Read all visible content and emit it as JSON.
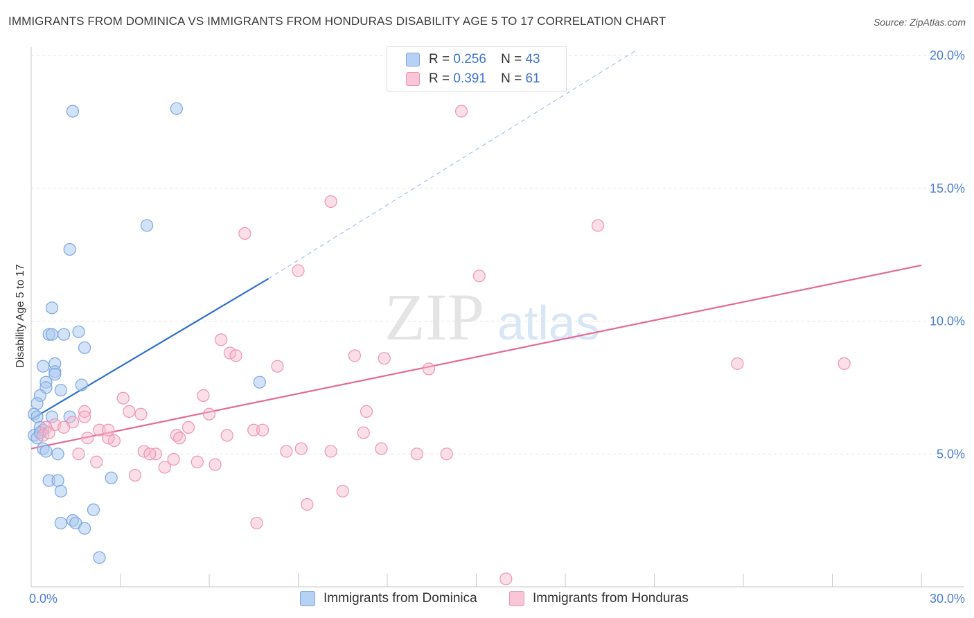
{
  "title": "IMMIGRANTS FROM DOMINICA VS IMMIGRANTS FROM HONDURAS DISABILITY AGE 5 TO 17 CORRELATION CHART",
  "source": "Source: ZipAtlas.com",
  "watermark": {
    "zip": "ZIP",
    "atlas": "atlas"
  },
  "legend": {
    "r_label": "R =",
    "n_label": "N =",
    "series": [
      {
        "r": "0.256",
        "n": "43"
      },
      {
        "r": "0.391",
        "n": "61"
      }
    ]
  },
  "bottom_legend": [
    "Immigrants from Dominica",
    "Immigrants from Honduras"
  ],
  "colors": {
    "dominica_fill": "#a8c8f0",
    "dominica_stroke": "#7aa6e0",
    "dominica_line": "#2f6fcf",
    "honduras_fill": "#f6b8cc",
    "honduras_stroke": "#ec94b1",
    "honduras_line": "#e36a96",
    "tick_text": "#4a7fd0"
  },
  "chart_data": {
    "type": "scatter",
    "title": "IMMIGRANTS FROM DOMINICA VS IMMIGRANTS FROM HONDURAS DISABILITY AGE 5 TO 17 CORRELATION CHART",
    "xlabel": "",
    "ylabel": "Disability Age 5 to 17",
    "xlim": [
      0,
      30
    ],
    "ylim": [
      0,
      20
    ],
    "x_tick_labels": [
      "0.0%",
      "30.0%"
    ],
    "y_ticks": [
      5,
      10,
      15,
      20
    ],
    "y_tick_labels": [
      "5.0%",
      "10.0%",
      "15.0%",
      "20.0%"
    ],
    "grid": true,
    "series": [
      {
        "name": "Immigrants from Dominica",
        "r": 0.256,
        "n": 43,
        "trend": {
          "x": [
            0.0,
            8.0
          ],
          "y": [
            6.3,
            11.6
          ],
          "extended_x": [
            8.0,
            20.4
          ],
          "extended_y": [
            11.6,
            20.2
          ]
        },
        "points": [
          [
            1.4,
            17.9
          ],
          [
            4.9,
            18.0
          ],
          [
            3.9,
            13.6
          ],
          [
            1.3,
            12.7
          ],
          [
            0.7,
            10.5
          ],
          [
            1.6,
            9.6
          ],
          [
            0.6,
            9.5
          ],
          [
            0.7,
            9.5
          ],
          [
            1.1,
            9.5
          ],
          [
            1.8,
            9.0
          ],
          [
            0.8,
            8.4
          ],
          [
            0.4,
            8.3
          ],
          [
            0.8,
            8.1
          ],
          [
            0.8,
            8.0
          ],
          [
            0.5,
            7.7
          ],
          [
            1.7,
            7.6
          ],
          [
            7.7,
            7.7
          ],
          [
            0.5,
            7.5
          ],
          [
            1.0,
            7.4
          ],
          [
            0.3,
            7.2
          ],
          [
            0.2,
            6.9
          ],
          [
            0.1,
            6.5
          ],
          [
            0.2,
            6.4
          ],
          [
            0.7,
            6.4
          ],
          [
            1.3,
            6.4
          ],
          [
            0.3,
            6.0
          ],
          [
            0.4,
            5.9
          ],
          [
            0.1,
            5.7
          ],
          [
            0.2,
            5.6
          ],
          [
            0.3,
            5.8
          ],
          [
            0.4,
            5.2
          ],
          [
            0.5,
            5.1
          ],
          [
            0.9,
            5.0
          ],
          [
            0.6,
            4.0
          ],
          [
            0.9,
            4.0
          ],
          [
            2.7,
            4.1
          ],
          [
            1.0,
            3.6
          ],
          [
            2.1,
            2.9
          ],
          [
            1.0,
            2.4
          ],
          [
            1.4,
            2.5
          ],
          [
            1.5,
            2.4
          ],
          [
            1.8,
            2.2
          ],
          [
            2.3,
            1.1
          ]
        ]
      },
      {
        "name": "Immigrants from Honduras",
        "r": 0.391,
        "n": 61,
        "trend": {
          "x": [
            0.0,
            30.0
          ],
          "y": [
            5.2,
            12.1
          ]
        },
        "points": [
          [
            14.5,
            17.9
          ],
          [
            10.1,
            14.5
          ],
          [
            19.1,
            13.6
          ],
          [
            7.2,
            13.3
          ],
          [
            9.0,
            11.9
          ],
          [
            15.1,
            11.7
          ],
          [
            6.4,
            9.3
          ],
          [
            6.7,
            8.8
          ],
          [
            6.9,
            8.7
          ],
          [
            10.9,
            8.7
          ],
          [
            11.9,
            8.6
          ],
          [
            8.3,
            8.3
          ],
          [
            13.4,
            8.2
          ],
          [
            23.8,
            8.4
          ],
          [
            27.4,
            8.4
          ],
          [
            3.1,
            7.1
          ],
          [
            5.8,
            7.2
          ],
          [
            3.3,
            6.6
          ],
          [
            3.7,
            6.5
          ],
          [
            1.8,
            6.6
          ],
          [
            6.0,
            6.5
          ],
          [
            11.3,
            6.6
          ],
          [
            1.8,
            6.4
          ],
          [
            1.4,
            6.2
          ],
          [
            5.3,
            6.0
          ],
          [
            0.8,
            6.1
          ],
          [
            0.5,
            6.0
          ],
          [
            1.1,
            6.0
          ],
          [
            2.3,
            5.9
          ],
          [
            7.5,
            5.9
          ],
          [
            7.8,
            5.9
          ],
          [
            0.4,
            5.7
          ],
          [
            0.6,
            5.8
          ],
          [
            1.9,
            5.6
          ],
          [
            4.9,
            5.7
          ],
          [
            5.0,
            5.6
          ],
          [
            6.6,
            5.7
          ],
          [
            11.2,
            5.8
          ],
          [
            2.8,
            5.5
          ],
          [
            2.6,
            5.6
          ],
          [
            3.8,
            5.1
          ],
          [
            4.2,
            5.0
          ],
          [
            4.0,
            5.0
          ],
          [
            8.6,
            5.1
          ],
          [
            9.1,
            5.2
          ],
          [
            10.1,
            5.1
          ],
          [
            11.8,
            5.2
          ],
          [
            13.0,
            5.0
          ],
          [
            14.0,
            5.0
          ],
          [
            1.6,
            5.0
          ],
          [
            2.2,
            4.7
          ],
          [
            4.8,
            4.8
          ],
          [
            5.6,
            4.7
          ],
          [
            6.2,
            4.6
          ],
          [
            4.5,
            4.5
          ],
          [
            3.5,
            4.2
          ],
          [
            10.5,
            3.6
          ],
          [
            9.3,
            3.1
          ],
          [
            7.6,
            2.4
          ],
          [
            2.6,
            5.9
          ],
          [
            16.0,
            0.3
          ]
        ]
      }
    ]
  }
}
